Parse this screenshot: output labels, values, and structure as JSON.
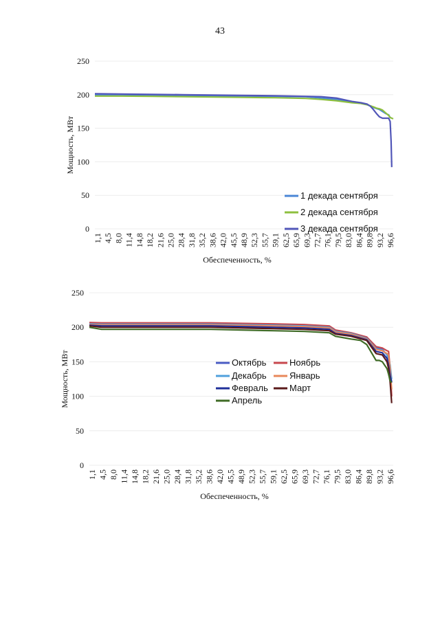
{
  "page": {
    "number": "43"
  },
  "chart_data": [
    {
      "type": "line",
      "title": "",
      "xlabel": "Обеспеченность, %",
      "ylabel": "Мощность, МВт",
      "ylim": [
        0,
        250
      ],
      "yticks": [
        "0",
        "50",
        "100",
        "150",
        "200",
        "250"
      ],
      "grid": true,
      "legend_position": "right-center",
      "categories": [
        "1,1",
        "4,5",
        "8,0",
        "11,4",
        "14,8",
        "18,2",
        "21,6",
        "25,0",
        "28,4",
        "31,8",
        "35,2",
        "38,6",
        "42,0",
        "45,5",
        "48,9",
        "52,3",
        "55,7",
        "59,1",
        "62,5",
        "65,9",
        "69,3",
        "72,7",
        "76,1",
        "79,5",
        "83,0",
        "86,4",
        "89,8",
        "93,2",
        "96,6"
      ],
      "series": [
        {
          "name": "1 декада сентября",
          "color": "#4a86d6",
          "x": [
            1.1,
            10,
            20,
            30,
            40,
            50,
            60,
            70,
            75,
            80,
            85,
            88,
            90,
            92,
            94,
            95,
            96,
            97,
            97.5,
            98
          ],
          "values": [
            200,
            200,
            199.5,
            199,
            198.5,
            198,
            197.5,
            197,
            195,
            193,
            189,
            187,
            185,
            181,
            178,
            175,
            172,
            170,
            166,
            165
          ]
        },
        {
          "name": "2 декада сентября",
          "color": "#8dbf3e",
          "x": [
            1.1,
            10,
            20,
            30,
            40,
            50,
            60,
            70,
            75,
            80,
            85,
            88,
            90,
            92,
            93,
            94,
            95,
            96,
            97,
            97.5,
            98.5
          ],
          "values": [
            198,
            198,
            197.5,
            197,
            196.5,
            196,
            195.5,
            194.5,
            193,
            191,
            188,
            187,
            185,
            182,
            180,
            179,
            177,
            173,
            169,
            166,
            164
          ]
        },
        {
          "name": "3 декада сентября",
          "color": "#5156b8",
          "x": [
            1.1,
            10,
            20,
            30,
            40,
            50,
            60,
            70,
            75,
            80,
            85,
            88,
            90,
            91,
            92,
            93,
            94,
            95,
            96,
            97,
            97.5,
            97.8,
            98
          ],
          "values": [
            201.5,
            201,
            200.5,
            200,
            199.5,
            199,
            198.5,
            197.5,
            197,
            195,
            190,
            188,
            186,
            183,
            178,
            172,
            167,
            165,
            165,
            165,
            160,
            130,
            92
          ]
        }
      ]
    },
    {
      "type": "line",
      "title": "",
      "xlabel": "Обеспеченность, %",
      "ylabel": "Мощность, МВт",
      "ylim": [
        0,
        250
      ],
      "yticks": [
        "0",
        "50",
        "100",
        "150",
        "200",
        "250"
      ],
      "grid": true,
      "legend_position": "center-right",
      "categories": [
        "1,1",
        "4,5",
        "8,0",
        "11,4",
        "14,8",
        "18,2",
        "21,6",
        "25,0",
        "28,4",
        "31,8",
        "35,2",
        "38,6",
        "42,0",
        "45,5",
        "48,9",
        "52,3",
        "55,7",
        "59,1",
        "62,5",
        "65,9",
        "69,3",
        "72,7",
        "76,1",
        "79,5",
        "83,0",
        "86,4",
        "89,8",
        "93,2",
        "96,6"
      ],
      "series": [
        {
          "name": "Октябрь",
          "color": "#4a5cc4",
          "x": [
            1.1,
            5,
            20,
            40,
            60,
            70,
            78,
            80,
            85,
            90,
            93,
            95,
            96.5,
            97,
            97.5,
            98
          ],
          "values": [
            206,
            205.5,
            205.5,
            205.5,
            204,
            203,
            201,
            193,
            191,
            185,
            170,
            168,
            160,
            150,
            135,
            120
          ]
        },
        {
          "name": "Ноябрь",
          "color": "#c8484e",
          "x": [
            1.1,
            5,
            20,
            40,
            60,
            70,
            78,
            80,
            85,
            90,
            93,
            95,
            96.5,
            97,
            97.5,
            98
          ],
          "values": [
            207,
            206.5,
            206.5,
            206.5,
            205,
            204,
            202,
            196,
            192,
            186,
            172,
            170,
            166,
            165,
            140,
            100
          ]
        },
        {
          "name": "Декабрь",
          "color": "#4fa0dc",
          "x": [
            1.1,
            5,
            20,
            40,
            60,
            70,
            78,
            80,
            85,
            90,
            93,
            95,
            96.5,
            97,
            97.5,
            98
          ],
          "values": [
            205,
            204.5,
            204.5,
            204.5,
            203,
            202,
            200,
            194,
            191,
            184,
            169,
            167,
            160,
            155,
            145,
            125
          ]
        },
        {
          "name": "Январь",
          "color": "#e8875a",
          "x": [
            1.1,
            5,
            20,
            40,
            60,
            70,
            78,
            80,
            85,
            90,
            93,
            95,
            96.5,
            97,
            97.5,
            98
          ],
          "values": [
            204,
            203.5,
            203.5,
            203.5,
            202,
            201,
            199,
            193,
            190,
            183,
            168,
            166,
            162,
            160,
            140,
            110
          ]
        },
        {
          "name": "Февраль",
          "color": "#1f2f9a",
          "x": [
            1.1,
            5,
            20,
            40,
            60,
            70,
            78,
            80,
            85,
            90,
            93,
            95,
            96.5,
            97,
            97.5,
            98
          ],
          "values": [
            203,
            202,
            202,
            202,
            200,
            199,
            197,
            191,
            188,
            182,
            165,
            163,
            155,
            145,
            130,
            120
          ]
        },
        {
          "name": "Март",
          "color": "#5a1a1a",
          "x": [
            1.1,
            5,
            20,
            40,
            60,
            70,
            78,
            80,
            85,
            90,
            93,
            95,
            96.5,
            97,
            97.5,
            98
          ],
          "values": [
            202,
            200,
            200,
            200,
            198,
            197,
            195,
            190,
            187,
            181,
            162,
            160,
            150,
            140,
            120,
            90
          ]
        },
        {
          "name": "Апрель",
          "color": "#3f6b26",
          "x": [
            1.1,
            5,
            20,
            40,
            60,
            70,
            78,
            80,
            85,
            88,
            90,
            93,
            94,
            95,
            96.5,
            97,
            97.5,
            98
          ],
          "values": [
            200,
            197,
            197,
            197,
            195,
            194,
            192,
            187,
            183,
            181,
            175,
            152,
            152,
            150,
            140,
            132,
            122,
            120
          ]
        }
      ]
    }
  ]
}
